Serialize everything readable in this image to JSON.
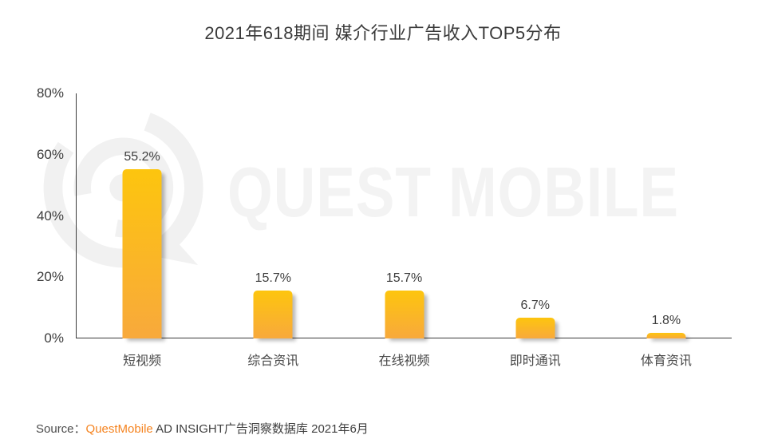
{
  "watermark": {
    "text": "QUEST MOBILE",
    "color": "#f3f3f3",
    "logo_color": "#f1f1f1"
  },
  "chart_data": {
    "type": "bar",
    "title": "2021年618期间 媒介行业广告收入TOP5分布",
    "categories": [
      "短视频",
      "综合资讯",
      "在线视频",
      "即时通讯",
      "体育资讯"
    ],
    "values": [
      55.2,
      15.7,
      15.7,
      6.7,
      1.8
    ],
    "value_labels": [
      "55.2%",
      "15.7%",
      "15.7%",
      "6.7%",
      "1.8%"
    ],
    "xlabel": "",
    "ylabel": "",
    "ylim": [
      0,
      80
    ],
    "yticks": [
      0,
      20,
      40,
      60,
      80
    ],
    "ytick_labels": [
      "0%",
      "20%",
      "40%",
      "60%",
      "80%"
    ],
    "grid": false,
    "legend": null,
    "bar_color_top": "#fdc50e",
    "bar_color_bottom": "#f8a93c"
  },
  "source": {
    "prefix": "Source：",
    "brand": "QuestMobile",
    "brand_color": "#f5831f",
    "suffix": " AD INSIGHT广告洞察数据库 2021年6月"
  }
}
